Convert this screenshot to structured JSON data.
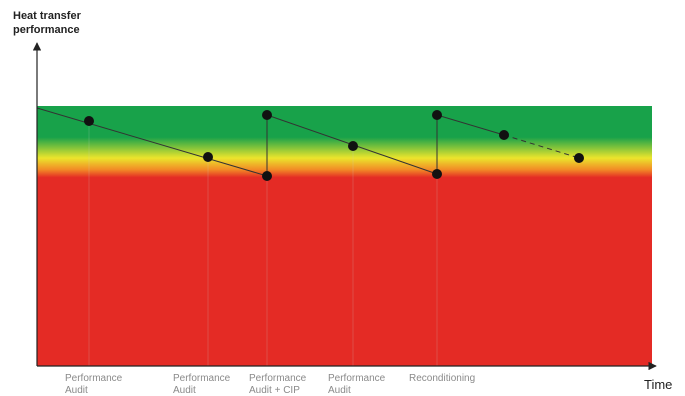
{
  "y_axis_title": [
    "Heat transfer",
    "performance"
  ],
  "x_axis_title": "Time",
  "zone_colors": {
    "green": "#18a24a",
    "yellow": "#ebe52c",
    "orange": "#f28a26",
    "red": "#e42b25"
  },
  "line_color": "#333333",
  "marker_color": "#111111",
  "event_labels": [
    [
      "Performance",
      "Audit"
    ],
    [
      "Performance",
      "Audit"
    ],
    [
      "Performance",
      "Audit + CIP"
    ],
    [
      "Performance",
      "Audit"
    ],
    [
      "Reconditioning"
    ]
  ]
}
